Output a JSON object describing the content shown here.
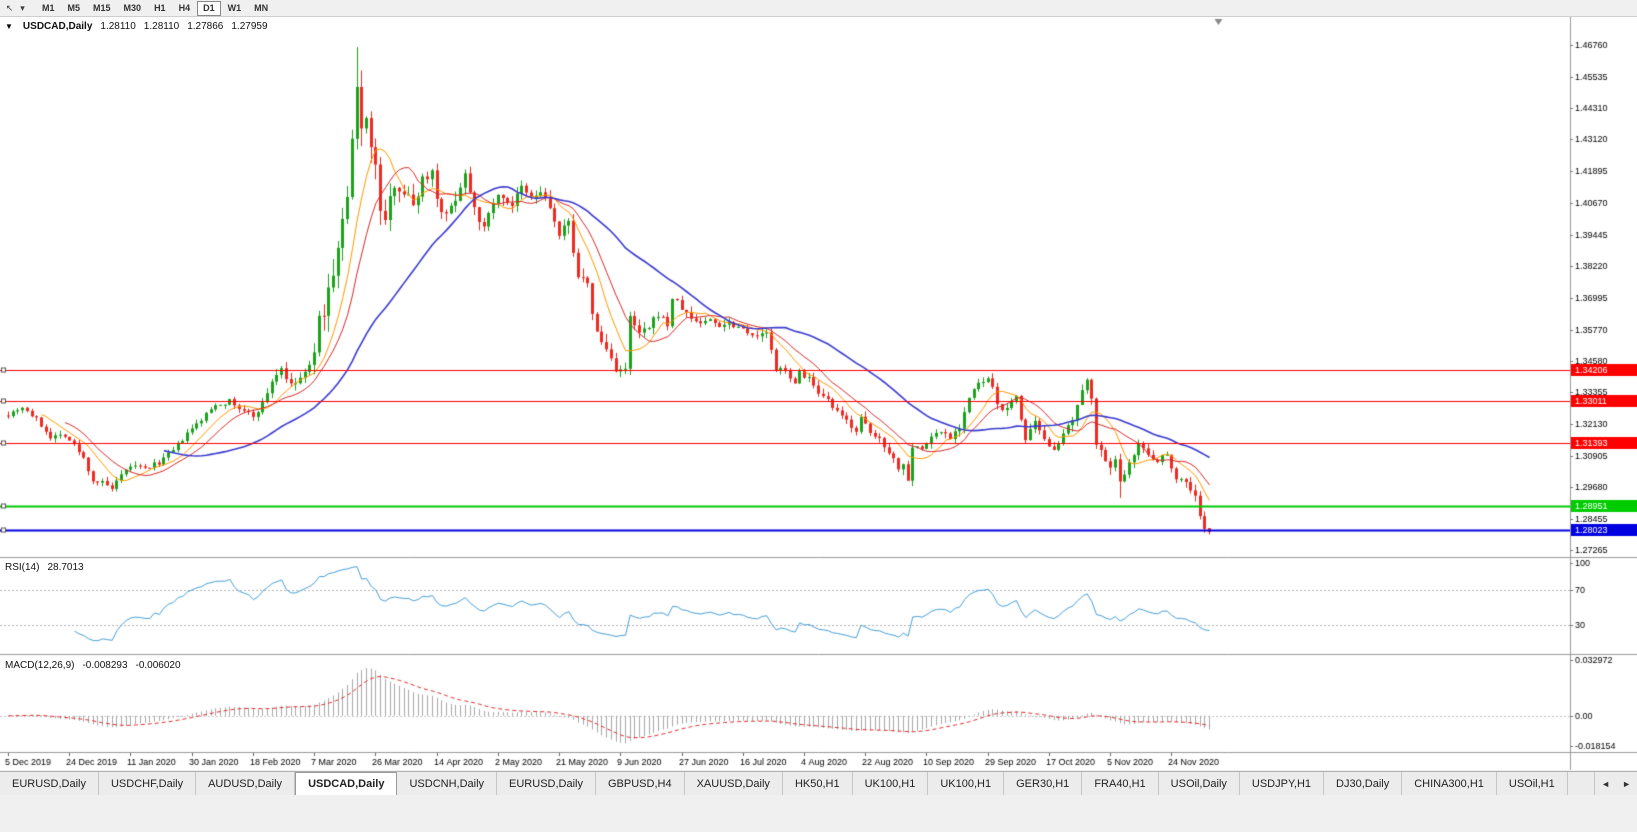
{
  "toolbar": {
    "icons": [
      {
        "name": "chart-cursor-icon",
        "glyph": "↖"
      },
      {
        "name": "dropdown-arrow-icon",
        "glyph": "▾"
      }
    ],
    "timeframes": [
      "M1",
      "M5",
      "M15",
      "M30",
      "H1",
      "H4",
      "D1",
      "W1",
      "MN"
    ],
    "active_timeframe": "D1"
  },
  "chart_title": {
    "collapse_glyph": "▼",
    "symbol_period": "USDCAD,Daily",
    "open": "1.28110",
    "high": "1.28110",
    "low": "1.27866",
    "close": "1.27959"
  },
  "rsi_title": {
    "label": "RSI(14)",
    "value": "28.7013"
  },
  "macd_title": {
    "label": "MACD(12,26,9)",
    "main": "-0.008293",
    "signal": "-0.006020"
  },
  "chart_data": {
    "type": "candlestick",
    "symbol": "USDCAD",
    "timeframe": "Daily",
    "bars": 256,
    "y_axis": {
      "max": 1.47841,
      "min": 1.26997,
      "ticks": [
        "1.46760",
        "1.45535",
        "1.44310",
        "1.43120",
        "1.41895",
        "1.40670",
        "1.39445",
        "1.38220",
        "1.36995",
        "1.35770",
        "1.34580",
        "1.33355",
        "1.32130",
        "1.30905",
        "1.29680",
        "1.28455",
        "1.27265"
      ]
    },
    "x_ticks": [
      {
        "bar": 0,
        "label": "5 Dec 2019"
      },
      {
        "bar": 13,
        "label": "24 Dec 2019"
      },
      {
        "bar": 26,
        "label": "11 Jan 2020"
      },
      {
        "bar": 39,
        "label": "30 Jan 2020"
      },
      {
        "bar": 52,
        "label": "18 Feb 2020"
      },
      {
        "bar": 65,
        "label": "7 Mar 2020"
      },
      {
        "bar": 78,
        "label": "26 Mar 2020"
      },
      {
        "bar": 91,
        "label": "14 Apr 2020"
      },
      {
        "bar": 104,
        "label": "2 May 2020"
      },
      {
        "bar": 117,
        "label": "21 May 2020"
      },
      {
        "bar": 130,
        "label": "9 Jun 2020"
      },
      {
        "bar": 143,
        "label": "27 Jun 2020"
      },
      {
        "bar": 156,
        "label": "16 Jul 2020"
      },
      {
        "bar": 169,
        "label": "4 Aug 2020"
      },
      {
        "bar": 182,
        "label": "22 Aug 2020"
      },
      {
        "bar": 195,
        "label": "10 Sep 2020"
      },
      {
        "bar": 208,
        "label": "29 Sep 2020"
      },
      {
        "bar": 221,
        "label": "17 Oct 2020"
      },
      {
        "bar": 234,
        "label": "5 Nov 2020"
      },
      {
        "bar": 247,
        "label": "24 Nov 2020"
      }
    ],
    "candles": {
      "up_color": "#1ea11e",
      "down_color": "#ee2a22",
      "seed": 7,
      "close_anchors": [
        [
          0,
          1.3252
        ],
        [
          3,
          1.328
        ],
        [
          6,
          1.323
        ],
        [
          9,
          1.3165
        ],
        [
          12,
          1.3172
        ],
        [
          14,
          1.313
        ],
        [
          16,
          1.308
        ],
        [
          18,
          1.2995
        ],
        [
          20,
          1.2985
        ],
        [
          22,
          1.2962
        ],
        [
          24,
          1.301
        ],
        [
          26,
          1.3052
        ],
        [
          29,
          1.304
        ],
        [
          32,
          1.3065
        ],
        [
          35,
          1.311
        ],
        [
          38,
          1.3175
        ],
        [
          41,
          1.323
        ],
        [
          44,
          1.329
        ],
        [
          47,
          1.33
        ],
        [
          50,
          1.326
        ],
        [
          52,
          1.3245
        ],
        [
          54,
          1.329
        ],
        [
          56,
          1.338
        ],
        [
          58,
          1.343
        ],
        [
          60,
          1.3355
        ],
        [
          62,
          1.339
        ],
        [
          64,
          1.3425
        ],
        [
          66,
          1.36
        ],
        [
          68,
          1.372
        ],
        [
          70,
          1.389
        ],
        [
          72,
          1.408
        ],
        [
          74,
          1.4496
        ],
        [
          75,
          1.435
        ],
        [
          76,
          1.442
        ],
        [
          77,
          1.428
        ],
        [
          78,
          1.419
        ],
        [
          79,
          1.405
        ],
        [
          80,
          1.399
        ],
        [
          82,
          1.415
        ],
        [
          84,
          1.411
        ],
        [
          86,
          1.406
        ],
        [
          88,
          1.416
        ],
        [
          90,
          1.419
        ],
        [
          91,
          1.409
        ],
        [
          93,
          1.401
        ],
        [
          95,
          1.409
        ],
        [
          97,
          1.418
        ],
        [
          99,
          1.406
        ],
        [
          101,
          1.396
        ],
        [
          103,
          1.408
        ],
        [
          105,
          1.409
        ],
        [
          107,
          1.406
        ],
        [
          109,
          1.412
        ],
        [
          111,
          1.408
        ],
        [
          113,
          1.411
        ],
        [
          115,
          1.405
        ],
        [
          117,
          1.3935
        ],
        [
          119,
          1.399
        ],
        [
          121,
          1.379
        ],
        [
          123,
          1.374
        ],
        [
          125,
          1.356
        ],
        [
          127,
          1.35
        ],
        [
          129,
          1.343
        ],
        [
          131,
          1.3415
        ],
        [
          132,
          1.362
        ],
        [
          134,
          1.356
        ],
        [
          136,
          1.358
        ],
        [
          138,
          1.364
        ],
        [
          140,
          1.3595
        ],
        [
          141,
          1.37
        ],
        [
          143,
          1.366
        ],
        [
          145,
          1.362
        ],
        [
          147,
          1.3605
        ],
        [
          149,
          1.3615
        ],
        [
          151,
          1.3595
        ],
        [
          153,
          1.3605
        ],
        [
          155,
          1.359
        ],
        [
          157,
          1.3575
        ],
        [
          159,
          1.3545
        ],
        [
          161,
          1.357
        ],
        [
          163,
          1.3415
        ],
        [
          165,
          1.343
        ],
        [
          167,
          1.336
        ],
        [
          168,
          1.3415
        ],
        [
          170,
          1.339
        ],
        [
          172,
          1.332
        ],
        [
          174,
          1.33
        ],
        [
          176,
          1.3255
        ],
        [
          178,
          1.3225
        ],
        [
          180,
          1.319
        ],
        [
          181,
          1.3235
        ],
        [
          183,
          1.3175
        ],
        [
          185,
          1.3155
        ],
        [
          187,
          1.311
        ],
        [
          189,
          1.3045
        ],
        [
          190,
          1.3055
        ],
        [
          191,
          1.3005
        ],
        [
          192,
          1.313
        ],
        [
          194,
          1.3115
        ],
        [
          196,
          1.3165
        ],
        [
          198,
          1.3185
        ],
        [
          200,
          1.3165
        ],
        [
          202,
          1.3205
        ],
        [
          204,
          1.3315
        ],
        [
          206,
          1.3365
        ],
        [
          208,
          1.3385
        ],
        [
          209,
          1.3345
        ],
        [
          210,
          1.329
        ],
        [
          212,
          1.3265
        ],
        [
          214,
          1.3325
        ],
        [
          216,
          1.315
        ],
        [
          218,
          1.3215
        ],
        [
          220,
          1.3145
        ],
        [
          222,
          1.3125
        ],
        [
          224,
          1.3165
        ],
        [
          226,
          1.3225
        ],
        [
          228,
          1.333
        ],
        [
          229,
          1.3385
        ],
        [
          230,
          1.3325
        ],
        [
          231,
          1.3145
        ],
        [
          233,
          1.3055
        ],
        [
          235,
          1.3065
        ],
        [
          236,
          1.2985
        ],
        [
          238,
          1.3075
        ],
        [
          240,
          1.3135
        ],
        [
          242,
          1.3095
        ],
        [
          244,
          1.3075
        ],
        [
          246,
          1.3098
        ],
        [
          248,
          1.3005
        ],
        [
          250,
          1.2992
        ],
        [
          252,
          1.2932
        ],
        [
          253,
          1.2862
        ],
        [
          254,
          1.2805
        ],
        [
          255,
          1.2796
        ]
      ],
      "vol_anchors": [
        [
          0,
          0.0028
        ],
        [
          20,
          0.0032
        ],
        [
          40,
          0.0028
        ],
        [
          55,
          0.0038
        ],
        [
          63,
          0.006
        ],
        [
          66,
          0.011
        ],
        [
          74,
          0.0135
        ],
        [
          78,
          0.0115
        ],
        [
          82,
          0.0085
        ],
        [
          90,
          0.007
        ],
        [
          100,
          0.0062
        ],
        [
          110,
          0.0058
        ],
        [
          118,
          0.0062
        ],
        [
          126,
          0.0062
        ],
        [
          132,
          0.0058
        ],
        [
          140,
          0.0045
        ],
        [
          150,
          0.0036
        ],
        [
          160,
          0.004
        ],
        [
          170,
          0.004
        ],
        [
          180,
          0.0036
        ],
        [
          190,
          0.0042
        ],
        [
          200,
          0.0038
        ],
        [
          210,
          0.0044
        ],
        [
          220,
          0.0038
        ],
        [
          228,
          0.005
        ],
        [
          232,
          0.0055
        ],
        [
          236,
          0.0052
        ],
        [
          240,
          0.0038
        ],
        [
          248,
          0.004
        ],
        [
          252,
          0.0048
        ],
        [
          255,
          0.0026
        ]
      ],
      "overrides": {
        "22": {
          "l": 1.2952
        },
        "74": {
          "h": 1.4668
        },
        "191": {
          "l": 1.2995
        },
        "236": {
          "l": 1.2928
        },
        "255": {
          "o": 1.2811,
          "h": 1.2811,
          "l": 1.27866,
          "c": 1.27959
        }
      }
    },
    "moving_averages": [
      {
        "period": 8,
        "color": "#ff9900",
        "width": 1
      },
      {
        "period": 13,
        "color": "#d62b2b",
        "width": 1
      },
      {
        "period": 34,
        "color": "#3b3bd0",
        "width": 1.6
      }
    ],
    "hlines": [
      {
        "price": 1.34206,
        "label": "1.34206",
        "color": "#ff0000",
        "width": 1.2
      },
      {
        "price": 1.33011,
        "label": "1.33011",
        "color": "#ff0000",
        "width": 1.2
      },
      {
        "price": 1.31393,
        "label": "1.31393",
        "color": "#ff0000",
        "width": 1.2
      },
      {
        "price": 1.28951,
        "label": "1.28951",
        "color": "#00cc00",
        "width": 2
      },
      {
        "price": 1.28023,
        "label": "1.28023",
        "color": "#0000e0",
        "width": 2
      }
    ],
    "shift_marker_bar": 257,
    "rsi": {
      "period": 14,
      "color": "#4aa0d8",
      "levels": [
        70,
        30
      ],
      "ticks": [
        {
          "v": 100,
          "label": "100"
        },
        {
          "v": 70,
          "label": "70"
        },
        {
          "v": 30,
          "label": "30"
        }
      ],
      "scale": {
        "max": 105,
        "min": -3
      }
    },
    "macd": {
      "fast": 12,
      "slow": 26,
      "signal": 9,
      "hist_color": "#a8a8a8",
      "signal_color": "#e03030",
      "ticks": [
        {
          "v": 0.032972,
          "label": "0.032972"
        },
        {
          "v": 0,
          "label": "0.00"
        },
        {
          "v": -0.018154,
          "label": "-0.018154"
        }
      ],
      "scale": {
        "max": 0.0355,
        "min": -0.0215
      }
    }
  },
  "tabs": {
    "items": [
      {
        "label": "EURUSD,Daily"
      },
      {
        "label": "USDCHF,Daily"
      },
      {
        "label": "AUDUSD,Daily"
      },
      {
        "label": "USDCAD,Daily",
        "active": true
      },
      {
        "label": "USDCNH,Daily"
      },
      {
        "label": "EURUSD,Daily"
      },
      {
        "label": "GBPUSD,H4"
      },
      {
        "label": "XAUUSD,Daily"
      },
      {
        "label": "HK50,H1"
      },
      {
        "label": "UK100,H1"
      },
      {
        "label": "UK100,H1"
      },
      {
        "label": "GER30,H1"
      },
      {
        "label": "FRA40,H1"
      },
      {
        "label": "USOil,Daily"
      },
      {
        "label": "USDJPY,H1"
      },
      {
        "label": "DJ30,Daily"
      },
      {
        "label": "CHINA300,H1"
      },
      {
        "label": "USOil,H1"
      }
    ],
    "scroll_left_glyph": "◄",
    "scroll_right_glyph": "►"
  }
}
